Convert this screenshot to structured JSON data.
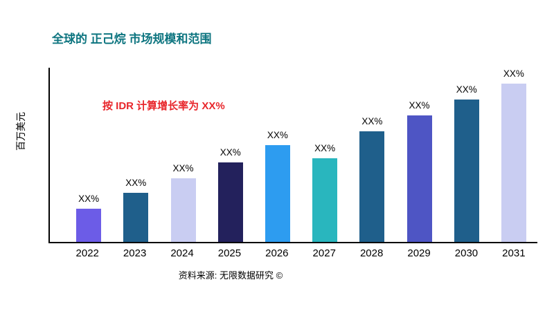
{
  "title": "全球的 正己烷 市场规模和范围",
  "annotation": "按 IDR 计算增长率为 XX%",
  "source": "资料来源: 无限数据研究 ©",
  "ylabel": "百万美元",
  "colors": {
    "title": "#0e7580",
    "annotation": "#e8262b",
    "axis": "#000000"
  },
  "chart_data": {
    "type": "bar",
    "title": "全球的 正己烷 市场规模和范围",
    "xlabel": "",
    "ylabel": "百万美元",
    "ylim": [
      0,
      110
    ],
    "grid": false,
    "legend": false,
    "categories": [
      "2022",
      "2023",
      "2024",
      "2025",
      "2026",
      "2027",
      "2028",
      "2029",
      "2030",
      "2031"
    ],
    "values": [
      21,
      31,
      40,
      50,
      61,
      53,
      70,
      80,
      90,
      100
    ],
    "bar_labels": [
      "XX%",
      "XX%",
      "XX%",
      "XX%",
      "XX%",
      "XX%",
      "XX%",
      "XX%",
      "XX%",
      "XX%"
    ],
    "bar_colors": [
      "#6c5ce7",
      "#1f5f8b",
      "#c9cdf2",
      "#23215c",
      "#2d9cf0",
      "#29b6be",
      "#1f5f8b",
      "#4e55c4",
      "#1f5f8b",
      "#c9cdf2"
    ],
    "annotation": "按 IDR 计算增长率为 XX%"
  }
}
